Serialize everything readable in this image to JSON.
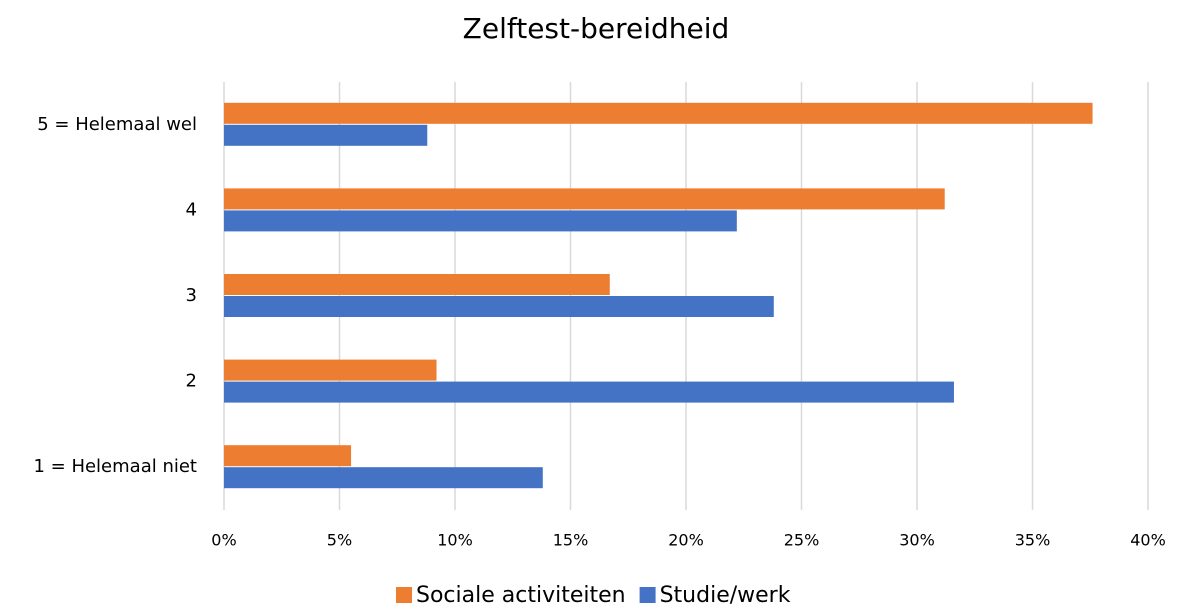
{
  "chart_data": {
    "type": "hbar",
    "title": "Zelftest-bereidheid",
    "categories": [
      "1 = Helemaal niet",
      "2",
      "3",
      "4",
      "5 = Helemaal wel"
    ],
    "series": [
      {
        "name": "Sociale activiteiten",
        "color": "#ed7d31",
        "values": [
          5.5,
          9.2,
          16.7,
          31.2,
          37.6
        ]
      },
      {
        "name": "Studie/werk",
        "color": "#4472c4",
        "values": [
          13.8,
          31.6,
          23.8,
          22.2,
          8.8
        ]
      }
    ],
    "xlim": [
      0,
      40
    ],
    "xticks": [
      {
        "value": 0,
        "label": "0%"
      },
      {
        "value": 5,
        "label": "5%"
      },
      {
        "value": 10,
        "label": "10%"
      },
      {
        "value": 15,
        "label": "15%"
      },
      {
        "value": 20,
        "label": "20%"
      },
      {
        "value": 25,
        "label": "25%"
      },
      {
        "value": 30,
        "label": "30%"
      },
      {
        "value": 35,
        "label": "35%"
      },
      {
        "value": 40,
        "label": "40%"
      }
    ],
    "grid": true,
    "legend": "bottom"
  }
}
